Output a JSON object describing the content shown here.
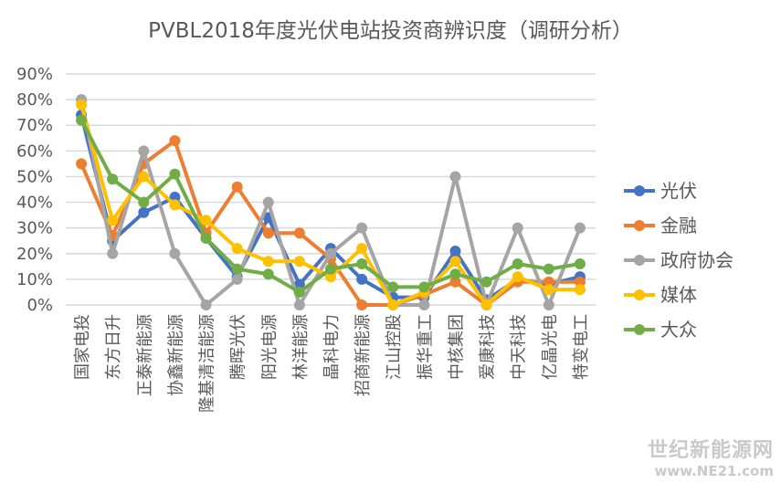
{
  "chart_data": {
    "type": "line",
    "title": "PVBL2018年度光伏电站投资商辨识度（调研分析）",
    "categories": [
      "国家电投",
      "东方日升",
      "正泰新能源",
      "协鑫新能源",
      "隆基清洁能源",
      "腾晖光伏",
      "阳光电源",
      "林洋能源",
      "晶科电力",
      "招商新能源",
      "江山控股",
      "振华重工",
      "中核集团",
      "爱康科技",
      "中天科技",
      "亿晶光电",
      "特变电工"
    ],
    "ylim": [
      0,
      90
    ],
    "yticks": [
      "0%",
      "10%",
      "20%",
      "30%",
      "40%",
      "50%",
      "60%",
      "70%",
      "80%",
      "90%"
    ],
    "grid": true,
    "legend_position": "right",
    "series": [
      {
        "name": "光伏",
        "color": "#4472C4",
        "values": [
          74,
          25,
          36,
          42,
          26,
          11,
          34,
          8,
          22,
          10,
          3,
          3,
          21,
          2,
          10,
          8,
          11
        ]
      },
      {
        "name": "金融",
        "color": "#ED7D31",
        "values": [
          55,
          27,
          55,
          64,
          28,
          46,
          28,
          28,
          18,
          0,
          0,
          4,
          9,
          0,
          9,
          9,
          9
        ]
      },
      {
        "name": "政府协会",
        "color": "#A5A5A5",
        "values": [
          80,
          20,
          60,
          20,
          0,
          10,
          40,
          0,
          20,
          30,
          0,
          0,
          50,
          0,
          30,
          0,
          30
        ]
      },
      {
        "name": "媒体",
        "color": "#FFC000",
        "values": [
          78,
          33,
          50,
          39,
          33,
          22,
          17,
          17,
          11,
          22,
          0,
          5,
          17,
          0,
          11,
          6,
          6
        ]
      },
      {
        "name": "大众",
        "color": "#70AD47",
        "values": [
          72,
          49,
          40,
          51,
          26,
          14,
          12,
          5,
          14,
          16,
          7,
          7,
          12,
          9,
          16,
          14,
          16
        ]
      }
    ]
  },
  "watermark": {
    "line1": "世纪新能源网",
    "line2": "www.NE21.com"
  }
}
